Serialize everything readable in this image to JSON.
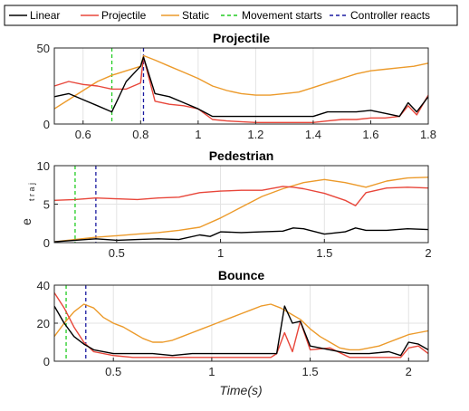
{
  "legend": {
    "entries": [
      {
        "label": "Linear",
        "color": "#000000",
        "dash": "solid"
      },
      {
        "label": "Projectile",
        "color": "#e8463a",
        "dash": "solid"
      },
      {
        "label": "Static",
        "color": "#ec9a2a",
        "dash": "solid"
      },
      {
        "label": "Movement starts",
        "color": "#22cc22",
        "dash": "dashed"
      },
      {
        "label": "Controller reacts",
        "color": "#1a1aa0",
        "dash": "dashed"
      }
    ]
  },
  "ylabel_main": "e",
  "ylabel_sub": "t r a j",
  "xlabel": "Time(s)",
  "chart_data": [
    {
      "type": "line",
      "title": "Projectile",
      "xlim": [
        0.5,
        1.8
      ],
      "ylim": [
        0,
        50
      ],
      "xticks": [
        0.6,
        0.8,
        1,
        1.2,
        1.4,
        1.6,
        1.8
      ],
      "xtick_labels": [
        "0.6",
        "0.8",
        "1",
        "1.2",
        "1.4",
        "1.6",
        "1.8"
      ],
      "yticks": [
        0,
        50
      ],
      "ytick_labels": [
        "0",
        "50"
      ],
      "grid": true,
      "vlines": {
        "movement_starts": 0.7,
        "controller_reacts": 0.81
      },
      "series": [
        {
          "name": "Linear",
          "x": [
            0.5,
            0.55,
            0.6,
            0.65,
            0.7,
            0.75,
            0.8,
            0.81,
            0.85,
            0.9,
            0.95,
            1.0,
            1.05,
            1.1,
            1.2,
            1.3,
            1.4,
            1.45,
            1.5,
            1.55,
            1.6,
            1.65,
            1.7,
            1.73,
            1.76,
            1.8
          ],
          "y": [
            18,
            20,
            16,
            12,
            8,
            28,
            38,
            44,
            20,
            18,
            14,
            10,
            5,
            5,
            5,
            5,
            5,
            8,
            8,
            8,
            9,
            7,
            5,
            14,
            8,
            18
          ]
        },
        {
          "name": "Projectile",
          "x": [
            0.5,
            0.55,
            0.6,
            0.65,
            0.7,
            0.75,
            0.8,
            0.81,
            0.85,
            0.9,
            0.95,
            1.0,
            1.05,
            1.1,
            1.2,
            1.3,
            1.4,
            1.45,
            1.5,
            1.55,
            1.6,
            1.65,
            1.7,
            1.73,
            1.76,
            1.8
          ],
          "y": [
            25,
            28,
            26,
            25,
            23,
            23,
            27,
            44,
            15,
            13,
            12,
            10,
            3,
            2,
            1,
            1,
            1,
            2,
            3,
            3,
            4,
            4,
            5,
            12,
            6,
            19
          ]
        },
        {
          "name": "Static",
          "x": [
            0.5,
            0.55,
            0.6,
            0.65,
            0.7,
            0.75,
            0.8,
            0.81,
            0.85,
            0.9,
            0.95,
            1.0,
            1.05,
            1.1,
            1.15,
            1.2,
            1.25,
            1.3,
            1.35,
            1.4,
            1.45,
            1.5,
            1.55,
            1.6,
            1.65,
            1.7,
            1.75,
            1.8
          ],
          "y": [
            10,
            16,
            22,
            28,
            32,
            35,
            38,
            45,
            42,
            38,
            34,
            30,
            25,
            22,
            20,
            19,
            19,
            20,
            21,
            24,
            27,
            30,
            33,
            35,
            36,
            37,
            38,
            40
          ]
        }
      ]
    },
    {
      "type": "line",
      "title": "Pedestrian",
      "xlim": [
        0.2,
        2
      ],
      "ylim": [
        0,
        10
      ],
      "xticks": [
        0.5,
        1,
        1.5,
        2
      ],
      "xtick_labels": [
        "0.5",
        "1",
        "1.5",
        "2"
      ],
      "yticks": [
        0,
        5,
        10
      ],
      "ytick_labels": [
        "0",
        "5",
        "10"
      ],
      "grid": true,
      "vlines": {
        "movement_starts": 0.3,
        "controller_reacts": 0.4
      },
      "series": [
        {
          "name": "Linear",
          "x": [
            0.2,
            0.3,
            0.4,
            0.5,
            0.6,
            0.7,
            0.8,
            0.9,
            0.95,
            1.0,
            1.1,
            1.2,
            1.3,
            1.35,
            1.4,
            1.5,
            1.6,
            1.65,
            1.7,
            1.8,
            1.9,
            2.0
          ],
          "y": [
            0.1,
            0.3,
            0.5,
            0.3,
            0.4,
            0.5,
            0.4,
            1.0,
            0.8,
            1.4,
            1.3,
            1.4,
            1.5,
            1.9,
            1.8,
            1.1,
            1.4,
            1.9,
            1.6,
            1.6,
            1.8,
            1.7
          ]
        },
        {
          "name": "Projectile",
          "x": [
            0.2,
            0.3,
            0.4,
            0.5,
            0.6,
            0.7,
            0.8,
            0.85,
            0.9,
            1.0,
            1.1,
            1.2,
            1.3,
            1.35,
            1.4,
            1.5,
            1.6,
            1.65,
            1.7,
            1.8,
            1.9,
            2.0
          ],
          "y": [
            5.5,
            5.6,
            5.8,
            5.7,
            5.6,
            5.8,
            5.9,
            6.2,
            6.5,
            6.7,
            6.8,
            6.8,
            7.3,
            7.2,
            7.0,
            6.4,
            5.5,
            4.8,
            6.5,
            7.1,
            7.2,
            7.1
          ]
        },
        {
          "name": "Static",
          "x": [
            0.2,
            0.3,
            0.4,
            0.5,
            0.6,
            0.7,
            0.8,
            0.9,
            1.0,
            1.1,
            1.2,
            1.3,
            1.4,
            1.5,
            1.6,
            1.7,
            1.8,
            1.9,
            2.0
          ],
          "y": [
            0.1,
            0.4,
            0.7,
            0.9,
            1.1,
            1.3,
            1.6,
            2.0,
            3.2,
            4.6,
            6.0,
            7.0,
            7.8,
            8.2,
            7.8,
            7.2,
            8.0,
            8.4,
            8.5
          ]
        }
      ]
    },
    {
      "type": "line",
      "title": "Bounce",
      "xlim": [
        0.2,
        2.1
      ],
      "ylim": [
        0,
        40
      ],
      "xticks": [
        0.5,
        1,
        1.5,
        2
      ],
      "xtick_labels": [
        "0.5",
        "1",
        "1.5",
        "2"
      ],
      "yticks": [
        0,
        20,
        40
      ],
      "ytick_labels": [
        "0",
        "20",
        "40"
      ],
      "grid": true,
      "vlines": {
        "movement_starts": 0.26,
        "controller_reacts": 0.36
      },
      "series": [
        {
          "name": "Linear",
          "x": [
            0.2,
            0.25,
            0.3,
            0.35,
            0.4,
            0.5,
            0.6,
            0.7,
            0.8,
            0.9,
            1.0,
            1.1,
            1.2,
            1.3,
            1.33,
            1.37,
            1.41,
            1.45,
            1.5,
            1.6,
            1.7,
            1.8,
            1.9,
            1.96,
            2.0,
            2.05,
            2.1
          ],
          "y": [
            29,
            20,
            13,
            9,
            6,
            4,
            4,
            4,
            3,
            4,
            4,
            4,
            4,
            4,
            4,
            29,
            20,
            21,
            8,
            6,
            4,
            4,
            5,
            3,
            10,
            9,
            6
          ]
        },
        {
          "name": "Projectile",
          "x": [
            0.2,
            0.25,
            0.3,
            0.35,
            0.4,
            0.5,
            0.6,
            0.7,
            0.8,
            0.9,
            1.0,
            1.1,
            1.2,
            1.3,
            1.33,
            1.37,
            1.41,
            1.45,
            1.5,
            1.6,
            1.7,
            1.8,
            1.9,
            1.96,
            2.0,
            2.05,
            2.1
          ],
          "y": [
            36,
            28,
            18,
            10,
            5,
            3,
            2,
            2,
            2,
            2,
            2,
            2,
            2,
            2,
            4,
            15,
            5,
            21,
            6,
            7,
            2,
            2,
            2,
            2,
            7,
            8,
            4
          ]
        },
        {
          "name": "Static",
          "x": [
            0.2,
            0.25,
            0.3,
            0.35,
            0.4,
            0.45,
            0.5,
            0.55,
            0.6,
            0.65,
            0.7,
            0.75,
            0.8,
            0.85,
            0.9,
            0.95,
            1.0,
            1.05,
            1.1,
            1.15,
            1.2,
            1.25,
            1.3,
            1.35,
            1.4,
            1.45,
            1.5,
            1.55,
            1.6,
            1.65,
            1.7,
            1.75,
            1.8,
            1.85,
            1.9,
            1.95,
            2.0,
            2.05,
            2.1
          ],
          "y": [
            13,
            20,
            26,
            30,
            28,
            23,
            20,
            18,
            15,
            12,
            10,
            10,
            11,
            13,
            15,
            17,
            19,
            21,
            23,
            25,
            27,
            29,
            30,
            28,
            25,
            22,
            17,
            13,
            10,
            7,
            6,
            6,
            7,
            8,
            10,
            12,
            14,
            15,
            16
          ]
        }
      ]
    }
  ]
}
